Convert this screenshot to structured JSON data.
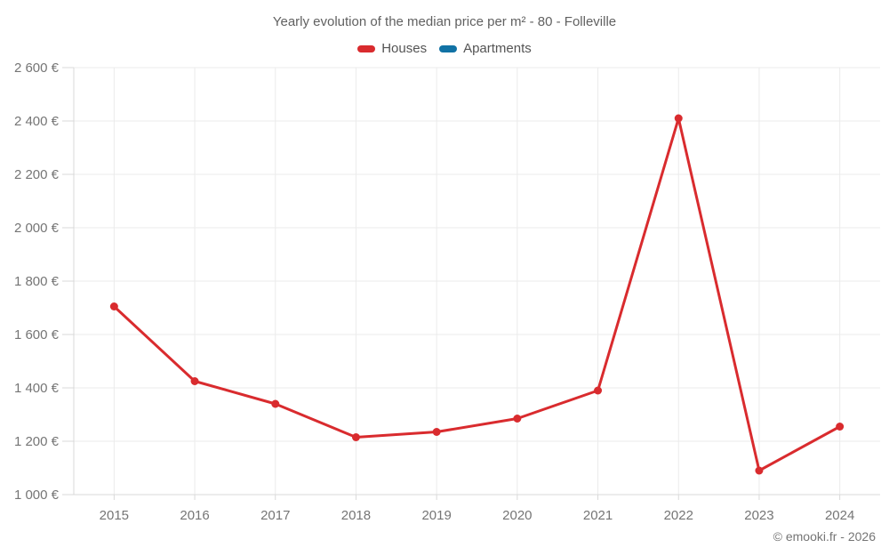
{
  "chart_data": {
    "type": "line",
    "title": "Yearly evolution of the median price per m² - 80 - Folleville",
    "categories": [
      "2015",
      "2016",
      "2017",
      "2018",
      "2019",
      "2020",
      "2021",
      "2022",
      "2023",
      "2024"
    ],
    "series": [
      {
        "name": "Houses",
        "color": "#d92b2e",
        "values": [
          1705,
          1425,
          1340,
          1215,
          1235,
          1285,
          1390,
          2410,
          1090,
          1255
        ]
      },
      {
        "name": "Apartments",
        "color": "#1172a5",
        "values": []
      }
    ],
    "xlabel": "",
    "ylabel": "",
    "ylim": [
      1000,
      2600
    ],
    "y_tick_step": 200,
    "y_tick_suffix": " €",
    "grid": true,
    "legend_position": "top",
    "colors": {
      "grid_line": "#ebebeb",
      "axis_line": "#d9d9d9",
      "tick_label": "#757575"
    }
  },
  "footer": {
    "copyright": "© emooki.fr - 2026"
  }
}
